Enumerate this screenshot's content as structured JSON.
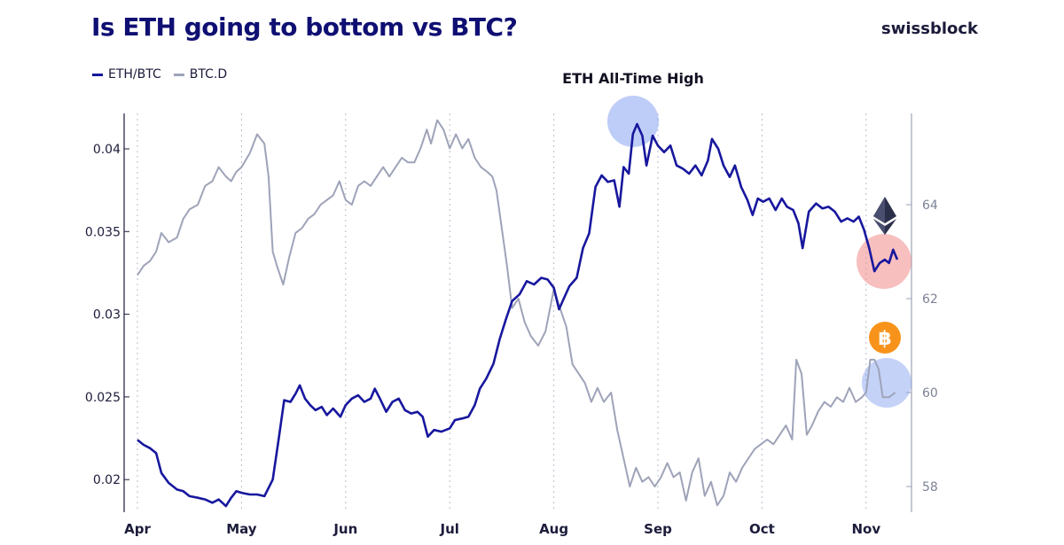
{
  "header": {
    "title": "Is ETH going to bottom vs BTC?",
    "brand": "swissblock"
  },
  "colors": {
    "eth_btc": "#17179e",
    "btc_d": "#9ea3b8",
    "highlight_blue": "#7d9cf0",
    "highlight_red": "#f28b8b",
    "btc_orange": "#f7931a",
    "eth_icon": "#2b2f4a"
  },
  "icons": {
    "eth": "ethereum-logo-icon",
    "btc": "bitcoin-logo-icon"
  },
  "chart_data": {
    "type": "line",
    "title": "Is ETH going to bottom vs BTC?",
    "x_ticks": [
      "Apr",
      "May",
      "Jun",
      "Jul",
      "Aug",
      "Sep",
      "Oct",
      "Nov"
    ],
    "y_left": {
      "ticks": [
        "0.02",
        "0.025",
        "0.03",
        "0.035",
        "0.04"
      ],
      "range": [
        0.0182,
        0.0426
      ]
    },
    "y_right": {
      "ticks": [
        "58",
        "60",
        "62",
        "64"
      ],
      "range": [
        57.5,
        65.8
      ]
    },
    "grid": "vertical dotted lines at month boundaries",
    "legend_position": "top-left",
    "annotations": [
      {
        "text": "ETH All-Time High",
        "month": 4.82,
        "value": 0.0418
      }
    ],
    "series": [
      {
        "name": "ETH/BTC",
        "axis": "left",
        "points": [
          [
            0.0,
            0.0224
          ],
          [
            0.06,
            0.0221
          ],
          [
            0.12,
            0.0219
          ],
          [
            0.18,
            0.0216
          ],
          [
            0.23,
            0.0204
          ],
          [
            0.3,
            0.0198
          ],
          [
            0.38,
            0.0194
          ],
          [
            0.44,
            0.0193
          ],
          [
            0.5,
            0.019
          ],
          [
            0.58,
            0.0189
          ],
          [
            0.65,
            0.0188
          ],
          [
            0.72,
            0.0186
          ],
          [
            0.78,
            0.0188
          ],
          [
            0.85,
            0.0184
          ],
          [
            0.9,
            0.0189
          ],
          [
            0.95,
            0.0193
          ],
          [
            1.0,
            0.0192
          ],
          [
            1.08,
            0.0191
          ],
          [
            1.15,
            0.0191
          ],
          [
            1.22,
            0.019
          ],
          [
            1.3,
            0.02
          ],
          [
            1.36,
            0.0226
          ],
          [
            1.41,
            0.0248
          ],
          [
            1.47,
            0.0247
          ],
          [
            1.52,
            0.0252
          ],
          [
            1.56,
            0.0257
          ],
          [
            1.61,
            0.0249
          ],
          [
            1.66,
            0.0245
          ],
          [
            1.71,
            0.0242
          ],
          [
            1.77,
            0.0244
          ],
          [
            1.82,
            0.0239
          ],
          [
            1.88,
            0.0243
          ],
          [
            1.95,
            0.0238
          ],
          [
            2.0,
            0.0245
          ],
          [
            2.06,
            0.0249
          ],
          [
            2.12,
            0.0251
          ],
          [
            2.18,
            0.0247
          ],
          [
            2.24,
            0.0249
          ],
          [
            2.28,
            0.0255
          ],
          [
            2.33,
            0.0249
          ],
          [
            2.39,
            0.0241
          ],
          [
            2.45,
            0.0247
          ],
          [
            2.51,
            0.0249
          ],
          [
            2.57,
            0.0242
          ],
          [
            2.63,
            0.024
          ],
          [
            2.69,
            0.0241
          ],
          [
            2.74,
            0.0238
          ],
          [
            2.79,
            0.0226
          ],
          [
            2.85,
            0.023
          ],
          [
            2.92,
            0.0229
          ],
          [
            3.0,
            0.0231
          ],
          [
            3.05,
            0.0236
          ],
          [
            3.12,
            0.0237
          ],
          [
            3.18,
            0.0238
          ],
          [
            3.24,
            0.0245
          ],
          [
            3.29,
            0.0255
          ],
          [
            3.35,
            0.0261
          ],
          [
            3.42,
            0.027
          ],
          [
            3.48,
            0.0285
          ],
          [
            3.54,
            0.0297
          ],
          [
            3.6,
            0.0308
          ],
          [
            3.67,
            0.0312
          ],
          [
            3.74,
            0.032
          ],
          [
            3.81,
            0.0318
          ],
          [
            3.88,
            0.0322
          ],
          [
            3.94,
            0.0321
          ],
          [
            4.0,
            0.0316
          ],
          [
            4.05,
            0.0303
          ],
          [
            4.1,
            0.031
          ],
          [
            4.15,
            0.0317
          ],
          [
            4.22,
            0.0322
          ],
          [
            4.28,
            0.034
          ],
          [
            4.34,
            0.0349
          ],
          [
            4.4,
            0.0377
          ],
          [
            4.46,
            0.0384
          ],
          [
            4.52,
            0.038
          ],
          [
            4.58,
            0.0381
          ],
          [
            4.63,
            0.0365
          ],
          [
            4.67,
            0.0389
          ],
          [
            4.72,
            0.0385
          ],
          [
            4.76,
            0.0409
          ],
          [
            4.8,
            0.0415
          ],
          [
            4.85,
            0.0408
          ],
          [
            4.89,
            0.039
          ],
          [
            4.95,
            0.0408
          ],
          [
            5.0,
            0.0402
          ],
          [
            5.06,
            0.0398
          ],
          [
            5.12,
            0.0402
          ],
          [
            5.18,
            0.039
          ],
          [
            5.24,
            0.0388
          ],
          [
            5.3,
            0.0385
          ],
          [
            5.36,
            0.039
          ],
          [
            5.42,
            0.0384
          ],
          [
            5.48,
            0.0393
          ],
          [
            5.52,
            0.0406
          ],
          [
            5.58,
            0.04
          ],
          [
            5.63,
            0.039
          ],
          [
            5.69,
            0.0383
          ],
          [
            5.74,
            0.039
          ],
          [
            5.8,
            0.0377
          ],
          [
            5.86,
            0.0369
          ],
          [
            5.91,
            0.036
          ],
          [
            5.96,
            0.037
          ],
          [
            6.01,
            0.0368
          ],
          [
            6.07,
            0.037
          ],
          [
            6.13,
            0.0363
          ],
          [
            6.19,
            0.037
          ],
          [
            6.24,
            0.0365
          ],
          [
            6.3,
            0.0363
          ],
          [
            6.35,
            0.0355
          ],
          [
            6.39,
            0.034
          ],
          [
            6.45,
            0.0362
          ],
          [
            6.52,
            0.0367
          ],
          [
            6.58,
            0.0364
          ],
          [
            6.64,
            0.0365
          ],
          [
            6.7,
            0.0362
          ],
          [
            6.76,
            0.0356
          ],
          [
            6.82,
            0.0358
          ],
          [
            6.88,
            0.0356
          ],
          [
            6.93,
            0.0359
          ],
          [
            6.98,
            0.0351
          ],
          [
            7.03,
            0.034
          ],
          [
            7.08,
            0.0326
          ],
          [
            7.13,
            0.0331
          ],
          [
            7.18,
            0.0333
          ],
          [
            7.22,
            0.0331
          ],
          [
            7.26,
            0.0339
          ],
          [
            7.3,
            0.0333
          ]
        ]
      },
      {
        "name": "BTC.D",
        "axis": "right",
        "points": [
          [
            0.0,
            62.5
          ],
          [
            0.06,
            62.7
          ],
          [
            0.12,
            62.8
          ],
          [
            0.18,
            63.0
          ],
          [
            0.23,
            63.4
          ],
          [
            0.3,
            63.2
          ],
          [
            0.38,
            63.3
          ],
          [
            0.44,
            63.7
          ],
          [
            0.5,
            63.9
          ],
          [
            0.58,
            64.0
          ],
          [
            0.65,
            64.4
          ],
          [
            0.72,
            64.5
          ],
          [
            0.78,
            64.8
          ],
          [
            0.85,
            64.6
          ],
          [
            0.9,
            64.5
          ],
          [
            0.95,
            64.7
          ],
          [
            1.0,
            64.8
          ],
          [
            1.08,
            65.1
          ],
          [
            1.15,
            65.5
          ],
          [
            1.22,
            65.3
          ],
          [
            1.26,
            64.6
          ],
          [
            1.3,
            63.0
          ],
          [
            1.34,
            62.7
          ],
          [
            1.4,
            62.3
          ],
          [
            1.46,
            62.9
          ],
          [
            1.52,
            63.4
          ],
          [
            1.58,
            63.5
          ],
          [
            1.64,
            63.7
          ],
          [
            1.7,
            63.8
          ],
          [
            1.76,
            64.0
          ],
          [
            1.82,
            64.1
          ],
          [
            1.88,
            64.2
          ],
          [
            1.94,
            64.5
          ],
          [
            2.0,
            64.1
          ],
          [
            2.06,
            64.0
          ],
          [
            2.12,
            64.4
          ],
          [
            2.18,
            64.5
          ],
          [
            2.24,
            64.4
          ],
          [
            2.3,
            64.6
          ],
          [
            2.36,
            64.8
          ],
          [
            2.42,
            64.6
          ],
          [
            2.48,
            64.8
          ],
          [
            2.54,
            65.0
          ],
          [
            2.6,
            64.9
          ],
          [
            2.66,
            64.9
          ],
          [
            2.72,
            65.2
          ],
          [
            2.78,
            65.6
          ],
          [
            2.82,
            65.3
          ],
          [
            2.88,
            65.8
          ],
          [
            2.94,
            65.6
          ],
          [
            3.0,
            65.2
          ],
          [
            3.06,
            65.5
          ],
          [
            3.12,
            65.2
          ],
          [
            3.18,
            65.4
          ],
          [
            3.24,
            65.0
          ],
          [
            3.3,
            64.8
          ],
          [
            3.36,
            64.7
          ],
          [
            3.41,
            64.6
          ],
          [
            3.45,
            64.3
          ],
          [
            3.5,
            63.5
          ],
          [
            3.55,
            62.7
          ],
          [
            3.6,
            61.8
          ],
          [
            3.66,
            62.0
          ],
          [
            3.72,
            61.5
          ],
          [
            3.78,
            61.2
          ],
          [
            3.85,
            61.0
          ],
          [
            3.92,
            61.3
          ],
          [
            4.0,
            62.2
          ],
          [
            4.06,
            61.8
          ],
          [
            4.12,
            61.4
          ],
          [
            4.18,
            60.6
          ],
          [
            4.24,
            60.4
          ],
          [
            4.3,
            60.2
          ],
          [
            4.36,
            59.8
          ],
          [
            4.42,
            60.1
          ],
          [
            4.48,
            59.8
          ],
          [
            4.55,
            60.0
          ],
          [
            4.61,
            59.2
          ],
          [
            4.67,
            58.6
          ],
          [
            4.73,
            58.0
          ],
          [
            4.79,
            58.4
          ],
          [
            4.85,
            58.1
          ],
          [
            4.91,
            58.2
          ],
          [
            4.97,
            58.0
          ],
          [
            5.03,
            58.2
          ],
          [
            5.09,
            58.5
          ],
          [
            5.15,
            58.2
          ],
          [
            5.21,
            58.3
          ],
          [
            5.27,
            57.7
          ],
          [
            5.33,
            58.3
          ],
          [
            5.39,
            58.6
          ],
          [
            5.45,
            57.8
          ],
          [
            5.51,
            58.1
          ],
          [
            5.57,
            57.6
          ],
          [
            5.63,
            57.8
          ],
          [
            5.69,
            58.3
          ],
          [
            5.75,
            58.1
          ],
          [
            5.81,
            58.4
          ],
          [
            5.87,
            58.6
          ],
          [
            5.93,
            58.8
          ],
          [
            5.99,
            58.9
          ],
          [
            6.05,
            59.0
          ],
          [
            6.11,
            58.9
          ],
          [
            6.17,
            59.1
          ],
          [
            6.23,
            59.3
          ],
          [
            6.29,
            59.0
          ],
          [
            6.33,
            60.7
          ],
          [
            6.38,
            60.4
          ],
          [
            6.43,
            59.1
          ],
          [
            6.48,
            59.3
          ],
          [
            6.54,
            59.6
          ],
          [
            6.6,
            59.8
          ],
          [
            6.66,
            59.7
          ],
          [
            6.72,
            59.9
          ],
          [
            6.78,
            59.8
          ],
          [
            6.84,
            60.1
          ],
          [
            6.9,
            59.8
          ],
          [
            6.96,
            59.9
          ],
          [
            7.0,
            60.0
          ],
          [
            7.04,
            60.7
          ],
          [
            7.08,
            60.7
          ],
          [
            7.12,
            60.5
          ],
          [
            7.16,
            59.9
          ],
          [
            7.22,
            59.9
          ],
          [
            7.28,
            60.0
          ]
        ]
      }
    ]
  }
}
